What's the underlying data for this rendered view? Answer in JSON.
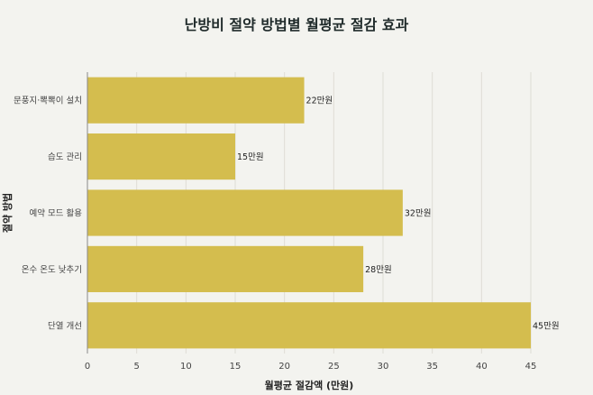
{
  "chart_data": {
    "type": "bar",
    "orientation": "horizontal",
    "title": "난방비 절약 방법별 월평균 절감 효과",
    "xlabel": "월평균 절감액 (만원)",
    "ylabel": "절약 방법",
    "categories": [
      "문풍지·뽁뽁이 설치",
      "습도 관리",
      "예약 모드 활용",
      "온수 온도 낮추기",
      "단열 개선"
    ],
    "values": [
      22,
      15,
      32,
      28,
      45
    ],
    "data_labels": [
      "22만원",
      "15만원",
      "32만원",
      "28만원",
      "45만원"
    ],
    "xlim": [
      0,
      45
    ],
    "xticks": [
      0,
      5,
      10,
      15,
      20,
      25,
      30,
      35,
      40,
      45
    ],
    "grid": true,
    "bar_color": "#d4bd4e"
  }
}
